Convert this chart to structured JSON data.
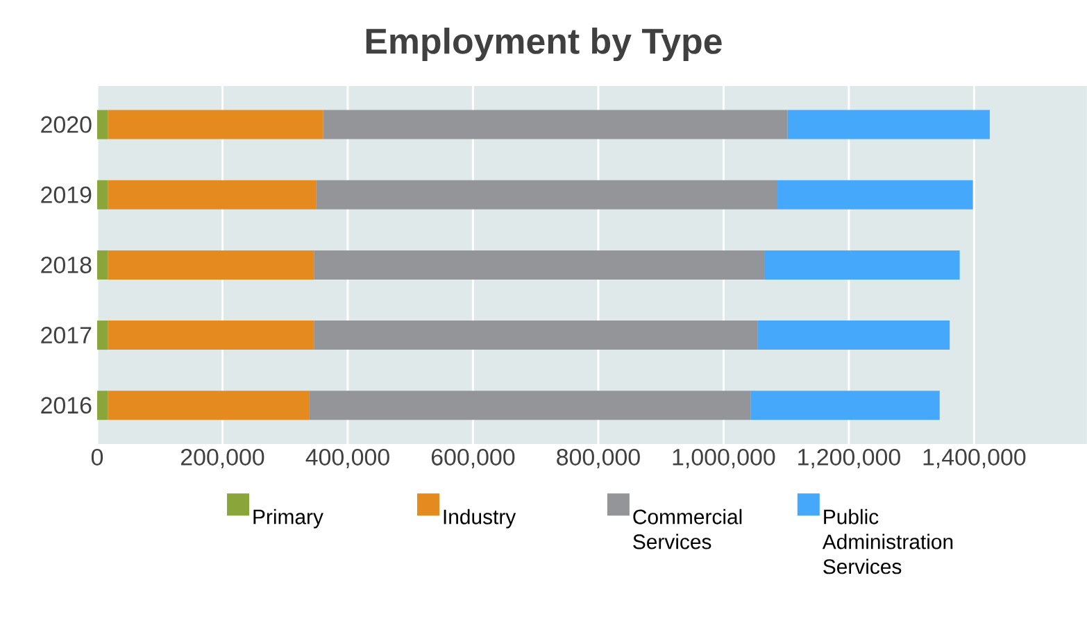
{
  "chart_data": {
    "type": "bar",
    "orientation": "horizontal",
    "stacked": true,
    "title": "Employment by Type",
    "categories": [
      "2020",
      "2019",
      "2018",
      "2017",
      "2016"
    ],
    "series": [
      {
        "name": "Primary",
        "color": "#8aa63a",
        "values": [
          17000,
          17000,
          17000,
          17000,
          17000
        ]
      },
      {
        "name": "Industry",
        "color": "#e58a1f",
        "values": [
          344000,
          333000,
          329000,
          329000,
          322000
        ]
      },
      {
        "name": "Commercial Services",
        "color": "#949599",
        "values": [
          741000,
          736000,
          719000,
          708000,
          704000
        ]
      },
      {
        "name": "Public Administration Services",
        "color": "#45a8fb",
        "values": [
          323000,
          312000,
          312000,
          307000,
          302000
        ]
      }
    ],
    "xlim": [
      0,
      1580000
    ],
    "xticks": [
      0,
      {
        "value": 200000,
        "label": "200,000"
      },
      {
        "value": 400000,
        "label": "400,000"
      },
      {
        "value": 600000,
        "label": "600,000"
      },
      {
        "value": 800000,
        "label": "800,000"
      },
      {
        "value": 1000000,
        "label": "1,000,000"
      },
      {
        "value": 1200000,
        "label": "1,200,000"
      },
      {
        "value": 1400000,
        "label": "1,400,000"
      }
    ],
    "grid": "x",
    "legend": "bottom"
  }
}
